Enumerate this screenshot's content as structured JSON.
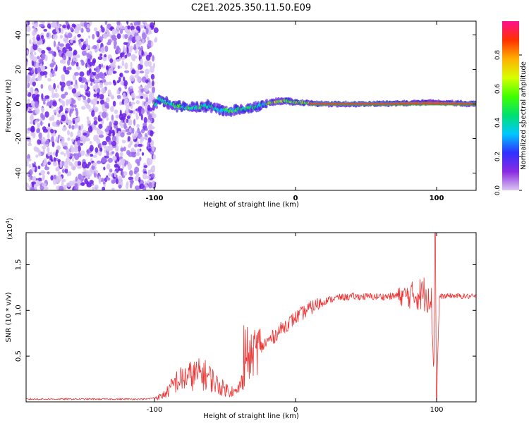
{
  "figure": {
    "title": "C2E1.2025.350.11.50.E09"
  },
  "chart_data": [
    {
      "type": "heatmap",
      "title": "C2E1.2025.350.11.50.E09",
      "xlabel": "Height of straight line (km)",
      "ylabel": "Frequency (Hz)",
      "xlim": [
        -191,
        128
      ],
      "ylim": [
        -50,
        48
      ],
      "x_ticks": [
        -100,
        0,
        100
      ],
      "y_ticks": [
        -40,
        -20,
        0,
        20,
        40
      ],
      "noise_region_x": [
        -191,
        -100
      ],
      "ridge": {
        "description": "main spectral ridge near 0 Hz",
        "points": [
          {
            "x": -98,
            "y": 3
          },
          {
            "x": -92,
            "y": 1
          },
          {
            "x": -85,
            "y": -1
          },
          {
            "x": -78,
            "y": -2
          },
          {
            "x": -70,
            "y": -2
          },
          {
            "x": -62,
            "y": -1
          },
          {
            "x": -55,
            "y": -3
          },
          {
            "x": -50,
            "y": -4
          },
          {
            "x": -45,
            "y": -4
          },
          {
            "x": -38,
            "y": -3
          },
          {
            "x": -30,
            "y": -2
          },
          {
            "x": -22,
            "y": 0
          },
          {
            "x": -15,
            "y": 1
          },
          {
            "x": -8,
            "y": 2
          },
          {
            "x": 0,
            "y": 1
          },
          {
            "x": 20,
            "y": 0
          },
          {
            "x": 60,
            "y": 0
          },
          {
            "x": 95,
            "y": 1
          },
          {
            "x": 128,
            "y": 0
          }
        ]
      },
      "colorbar": {
        "label": "Normalized spectral amplitude",
        "ticks": [
          "0.0",
          "0.2",
          "0.4",
          "0.6",
          "0.8"
        ],
        "range": [
          0,
          1
        ],
        "stops": [
          "#dcc8f0",
          "#8a2be2",
          "#3030ff",
          "#00c8ff",
          "#00e070",
          "#40ff00",
          "#d8ff00",
          "#ffb000",
          "#ff3000",
          "#ff1090"
        ]
      }
    },
    {
      "type": "line",
      "xlabel": "Height of straight line (km)",
      "ylabel": "SNR (10 * v/v)",
      "y_multiplier": "(x10",
      "y_multiplier_exp": "4",
      "xlim": [
        -191,
        128
      ],
      "ylim": [
        0.0,
        1.85
      ],
      "x_ticks": [
        -100,
        0,
        100
      ],
      "y_ticks": [
        0.5,
        1.0,
        1.5
      ],
      "y_tick_labels": [
        "0.5",
        "1.0",
        "1.5"
      ],
      "series": [
        {
          "name": "SNR",
          "color": "#ee3333",
          "points": [
            {
              "x": -191,
              "y": 0.03
            },
            {
              "x": -120,
              "y": 0.03
            },
            {
              "x": -105,
              "y": 0.03
            },
            {
              "x": -95,
              "y": 0.06
            },
            {
              "x": -90,
              "y": 0.12
            },
            {
              "x": -85,
              "y": 0.22
            },
            {
              "x": -80,
              "y": 0.25
            },
            {
              "x": -75,
              "y": 0.28
            },
            {
              "x": -70,
              "y": 0.3
            },
            {
              "x": -65,
              "y": 0.3
            },
            {
              "x": -60,
              "y": 0.26
            },
            {
              "x": -55,
              "y": 0.18
            },
            {
              "x": -50,
              "y": 0.14
            },
            {
              "x": -45,
              "y": 0.12
            },
            {
              "x": -42,
              "y": 0.1
            },
            {
              "x": -38,
              "y": 0.22
            },
            {
              "x": -35,
              "y": 0.32
            },
            {
              "x": -32,
              "y": 0.48
            },
            {
              "x": -28,
              "y": 0.58
            },
            {
              "x": -24,
              "y": 0.6
            },
            {
              "x": -20,
              "y": 0.66
            },
            {
              "x": -15,
              "y": 0.72
            },
            {
              "x": -10,
              "y": 0.8
            },
            {
              "x": -5,
              "y": 0.86
            },
            {
              "x": 0,
              "y": 0.92
            },
            {
              "x": 10,
              "y": 1.02
            },
            {
              "x": 20,
              "y": 1.1
            },
            {
              "x": 30,
              "y": 1.14
            },
            {
              "x": 40,
              "y": 1.15
            },
            {
              "x": 60,
              "y": 1.15
            },
            {
              "x": 80,
              "y": 1.16
            },
            {
              "x": 90,
              "y": 1.18
            },
            {
              "x": 96,
              "y": 1.2
            },
            {
              "x": 98,
              "y": 0.3
            },
            {
              "x": 99,
              "y": 1.82
            },
            {
              "x": 100,
              "y": 0.05
            },
            {
              "x": 102,
              "y": 1.15
            },
            {
              "x": 110,
              "y": 1.16
            },
            {
              "x": 128,
              "y": 1.15
            }
          ]
        }
      ]
    }
  ]
}
